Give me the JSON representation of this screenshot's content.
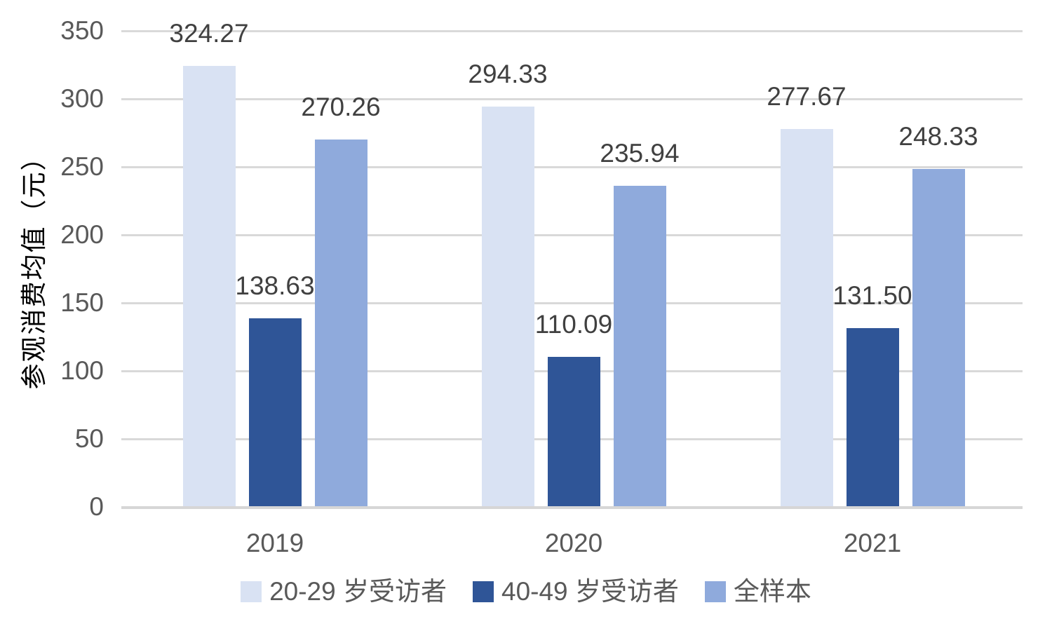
{
  "chart_data": {
    "type": "bar",
    "title": "",
    "categories": [
      "2019",
      "2020",
      "2021"
    ],
    "series": [
      {
        "name": "20-29 岁受访者",
        "color": "#d9e2f3",
        "values": [
          324.27,
          294.33,
          277.67
        ],
        "labels": [
          "324.27",
          "294.33",
          "277.67"
        ]
      },
      {
        "name": "40-49 岁受访者",
        "color": "#2f5597",
        "values": [
          138.63,
          110.09,
          131.5
        ],
        "labels": [
          "138.63",
          "110.09",
          "131.50"
        ]
      },
      {
        "name": "全样本",
        "color": "#8faadc",
        "values": [
          270.26,
          235.94,
          248.33
        ],
        "labels": [
          "270.26",
          "235.94",
          "248.33"
        ]
      }
    ],
    "xlabel": "",
    "ylabel": "参观消费均值（元）",
    "ylim": [
      0,
      350
    ],
    "ytick_interval": 50,
    "yticks": [
      "0",
      "50",
      "100",
      "150",
      "200",
      "250",
      "300",
      "350"
    ],
    "grid": true,
    "legend_position": "bottom",
    "colors": {
      "background": "#ffffff",
      "grid": "#d9d9d9",
      "axis": "#d6d6d6",
      "tick_text": "#595959",
      "data_label_text": "#404040",
      "legend_text": "#595959"
    }
  }
}
